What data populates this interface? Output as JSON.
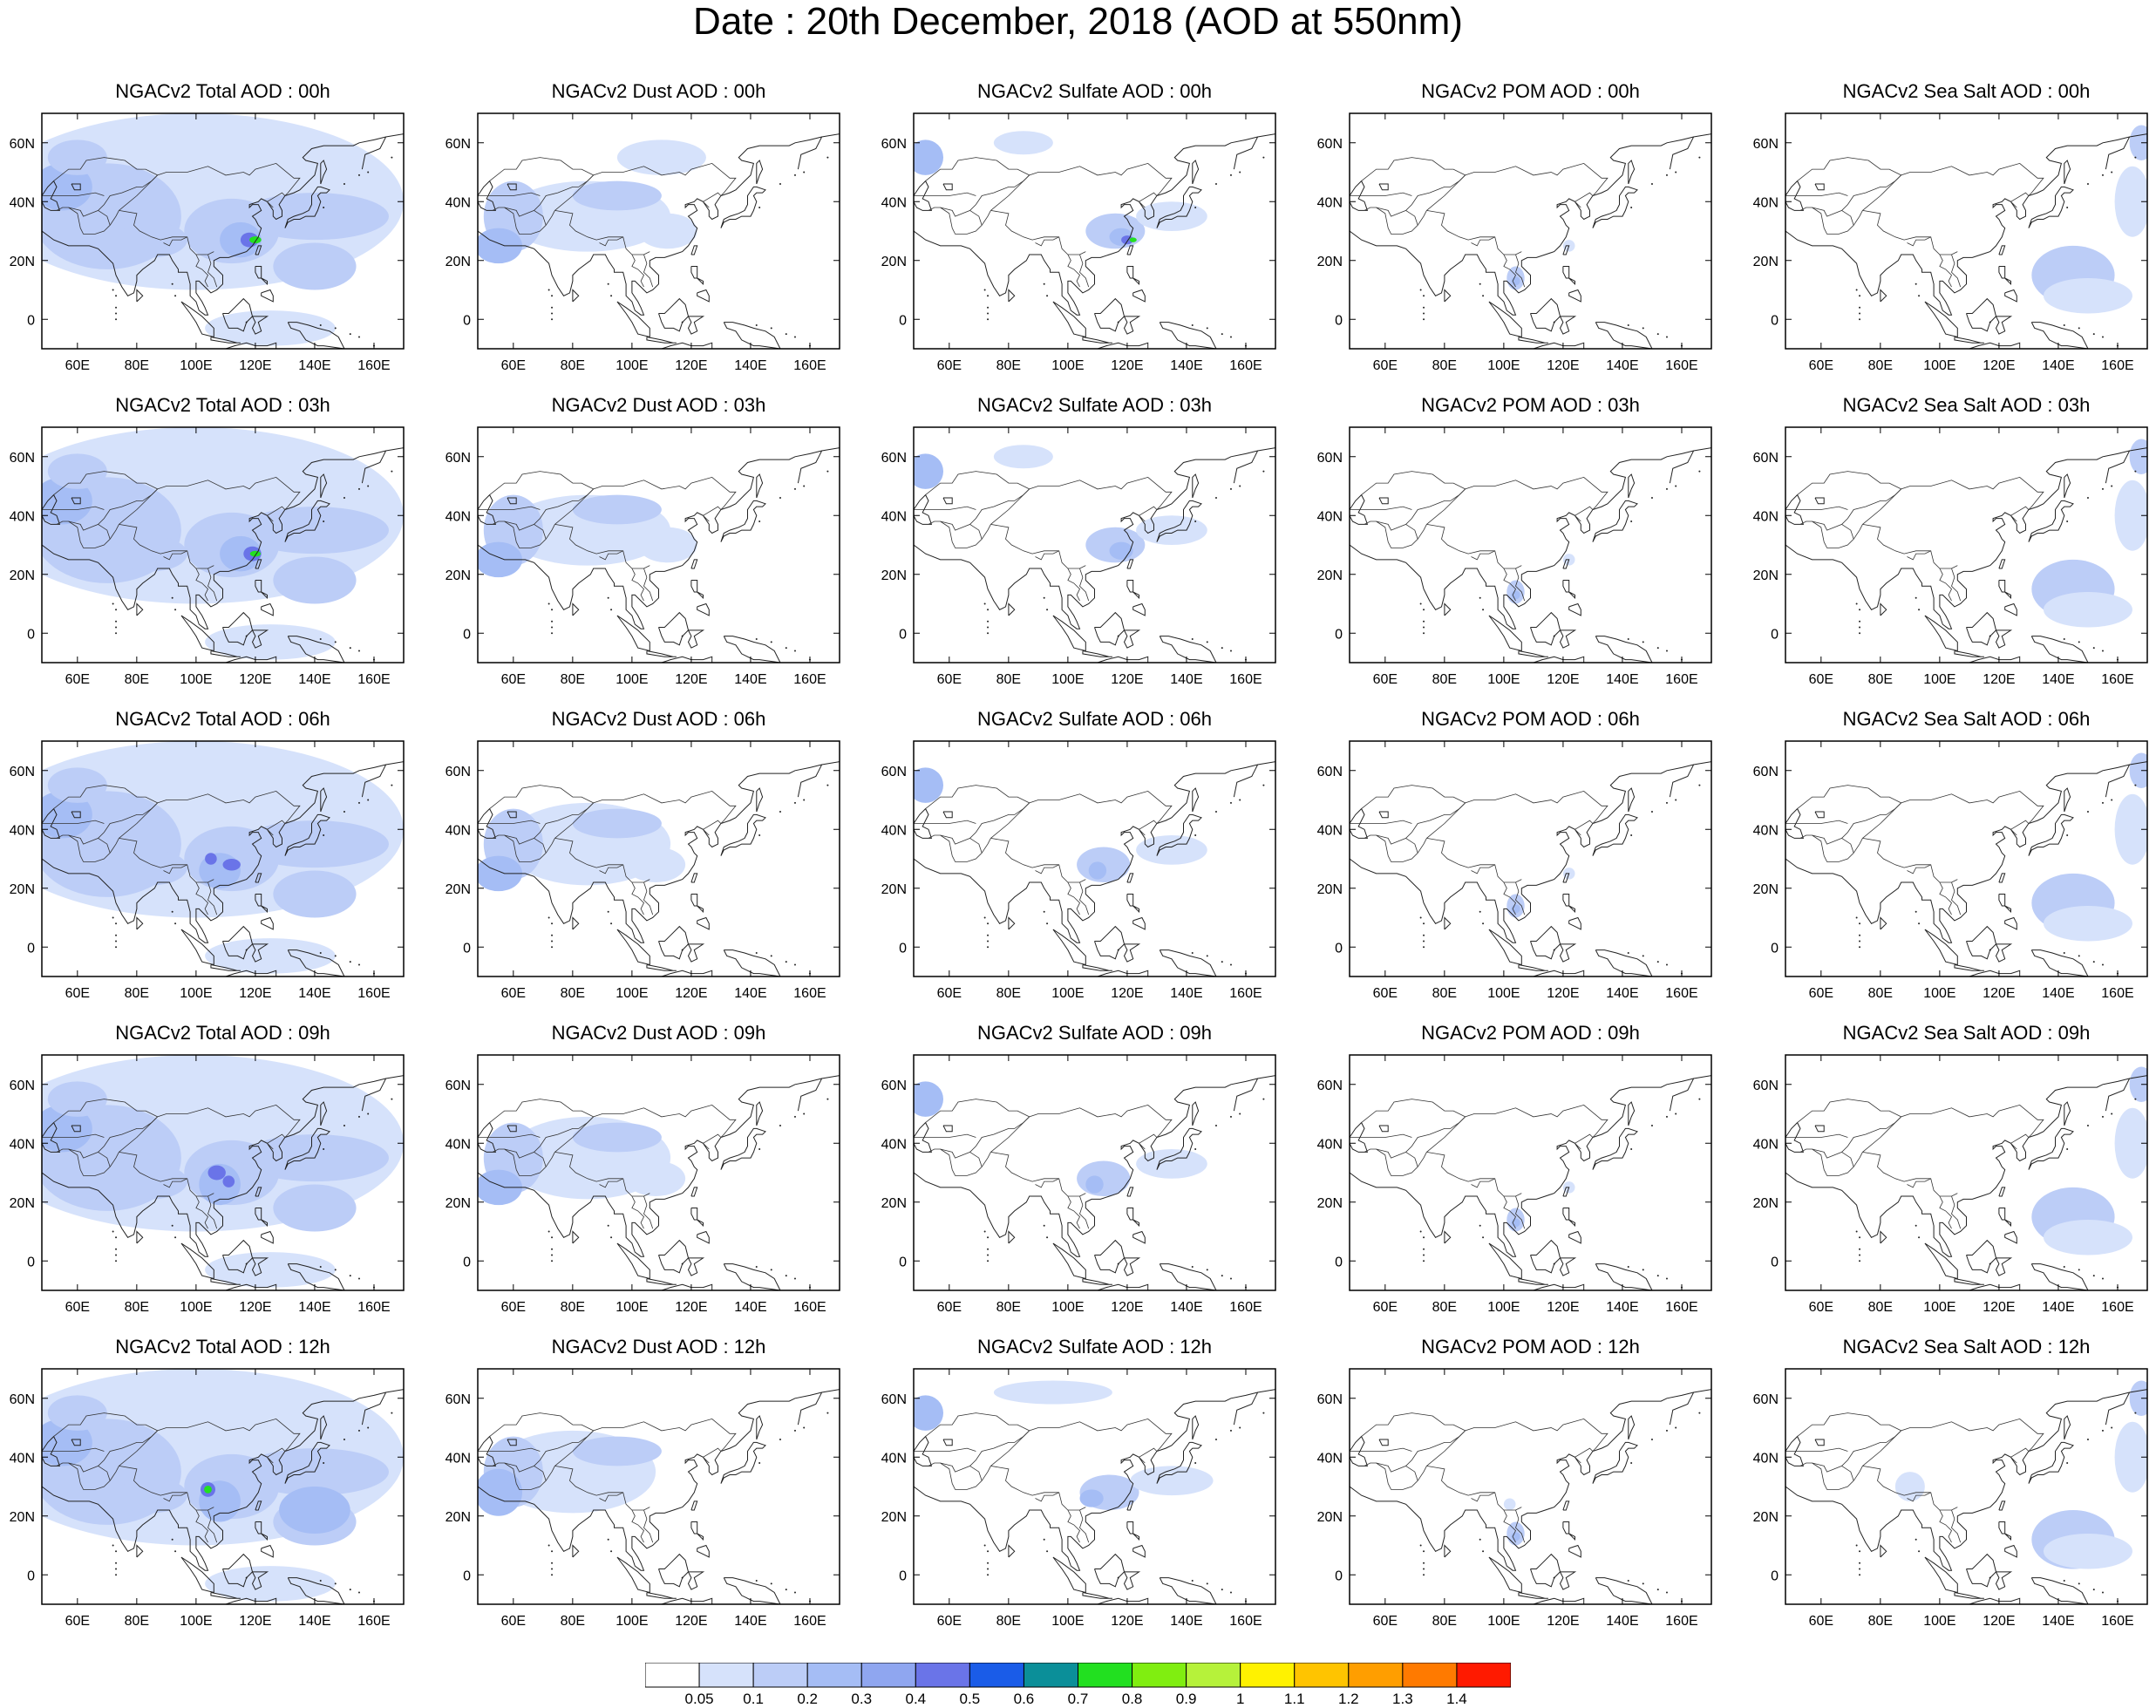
{
  "title": "Date : 20th December, 2018 (AOD at 550nm)",
  "map": {
    "lon_range": [
      48,
      170
    ],
    "lat_range": [
      -10,
      70
    ],
    "lon_ticks": [
      "60E",
      "80E",
      "100E",
      "120E",
      "140E",
      "160E"
    ],
    "lon_tick_values": [
      60,
      80,
      100,
      120,
      140,
      160
    ],
    "lat_ticks": [
      "60N",
      "40N",
      "20N",
      "0"
    ],
    "lat_tick_values": [
      60,
      40,
      20,
      0
    ]
  },
  "panels": [
    [
      "NGACv2 Total AOD : 00h",
      "NGACv2 Dust AOD : 00h",
      "NGACv2 Sulfate AOD : 00h",
      "NGACv2 POM AOD : 00h",
      "NGACv2 Sea Salt AOD : 00h"
    ],
    [
      "NGACv2 Total AOD : 03h",
      "NGACv2 Dust AOD : 03h",
      "NGACv2 Sulfate AOD : 03h",
      "NGACv2 POM AOD : 03h",
      "NGACv2 Sea Salt AOD : 03h"
    ],
    [
      "NGACv2 Total AOD : 06h",
      "NGACv2 Dust AOD : 06h",
      "NGACv2 Sulfate AOD : 06h",
      "NGACv2 POM AOD : 06h",
      "NGACv2 Sea Salt AOD : 06h"
    ],
    [
      "NGACv2 Total AOD : 09h",
      "NGACv2 Dust AOD : 09h",
      "NGACv2 Sulfate AOD : 09h",
      "NGACv2 POM AOD : 09h",
      "NGACv2 Sea Salt  AOD : 09h"
    ],
    [
      "NGACv2 Total AOD  : 12h",
      "NGACv2 Dust AOD : 12h",
      "NGACv2 Sulfate AOD : 12h",
      "NGACv2 POM  AOD : 12h",
      "NGACv2 Sea Salt  AOD : 12h"
    ]
  ],
  "colorbar": {
    "labels": [
      "0.05",
      "0.1",
      "0.2",
      "0.3",
      "0.4",
      "0.5",
      "0.6",
      "0.7",
      "0.8",
      "0.9",
      "1",
      "1.1",
      "1.2",
      "1.3",
      "1.4"
    ],
    "colors": [
      "#ffffff",
      "#d6e2fb",
      "#bccdf7",
      "#a5bdf5",
      "#8fa6f0",
      "#6a74e8",
      "#1a5ce8",
      "#0b8f99",
      "#22e020",
      "#80ee10",
      "#b6f23a",
      "#fff200",
      "#ffc400",
      "#ff9e00",
      "#ff7a00",
      "#ff1a00"
    ]
  }
}
